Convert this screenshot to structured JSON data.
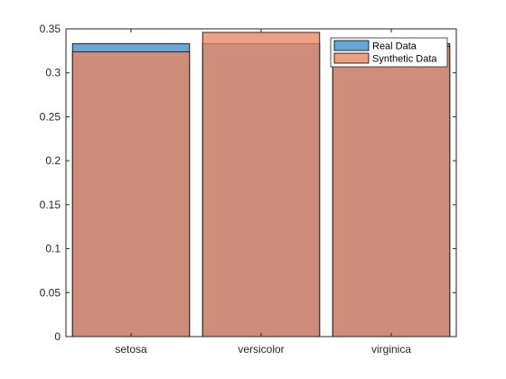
{
  "chart_data": {
    "type": "bar",
    "categories": [
      "setosa",
      "versicolor",
      "virginica"
    ],
    "series": [
      {
        "name": "Real Data",
        "values": [
          0.3333,
          0.3333,
          0.3333
        ],
        "color": "#4f97d2",
        "opacity": 0.85
      },
      {
        "name": "Synthetic Data",
        "values": [
          0.324,
          0.346,
          0.33
        ],
        "color": "#e9865f",
        "opacity": 0.78
      }
    ],
    "ylim": [
      0,
      0.35
    ],
    "yticks": [
      0,
      0.05,
      0.1,
      0.15,
      0.2,
      0.25,
      0.3,
      0.35
    ],
    "ytick_labels": [
      "0",
      "0.05",
      "0.1",
      "0.15",
      "0.2",
      "0.25",
      "0.3",
      "0.35"
    ],
    "legend_position": "top-right",
    "grid": false
  }
}
